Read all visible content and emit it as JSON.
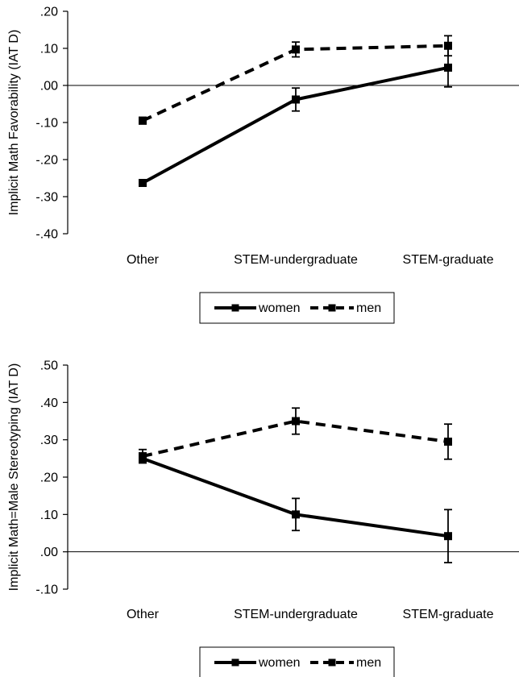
{
  "colors": {
    "line": "#000000",
    "background": "#ffffff"
  },
  "chart_data": [
    {
      "type": "line",
      "title": "",
      "xlabel": "",
      "ylabel": "Implicit Math Favorability (IAT D)",
      "categories": [
        "Other",
        "STEM-undergraduate",
        "STEM-graduate"
      ],
      "ylim": [
        -0.4,
        0.2
      ],
      "yticks": [
        ".20",
        ".10",
        ".00",
        "-.10",
        "-.20",
        "-.30",
        "-.40"
      ],
      "ytick_values": [
        0.2,
        0.1,
        0.0,
        -0.1,
        -0.2,
        -0.3,
        -0.4
      ],
      "zero_line": true,
      "legend_position": "bottom",
      "series": [
        {
          "name": "women",
          "style": "solid",
          "values": [
            -0.263,
            -0.038,
            0.048
          ],
          "errors": [
            0.005,
            0.031,
            0.052
          ]
        },
        {
          "name": "men",
          "style": "dashed",
          "values": [
            -0.095,
            0.097,
            0.107
          ],
          "errors": [
            0.009,
            0.02,
            0.027
          ]
        }
      ]
    },
    {
      "type": "line",
      "title": "",
      "xlabel": "",
      "ylabel": "Implicit Math=Male Stereotyping (IAT D)",
      "categories": [
        "Other",
        "STEM-undergraduate",
        "STEM-graduate"
      ],
      "ylim": [
        -0.1,
        0.5
      ],
      "yticks": [
        ".50",
        ".40",
        ".30",
        ".20",
        ".10",
        ".00",
        "-.10"
      ],
      "ytick_values": [
        0.5,
        0.4,
        0.3,
        0.2,
        0.1,
        0.0,
        -0.1
      ],
      "zero_line": true,
      "legend_position": "bottom",
      "series": [
        {
          "name": "women",
          "style": "solid",
          "values": [
            0.25,
            0.1,
            0.042
          ],
          "errors": [
            0.012,
            0.043,
            0.071
          ]
        },
        {
          "name": "men",
          "style": "dashed",
          "values": [
            0.256,
            0.35,
            0.295
          ],
          "errors": [
            0.018,
            0.035,
            0.047
          ]
        }
      ]
    }
  ]
}
